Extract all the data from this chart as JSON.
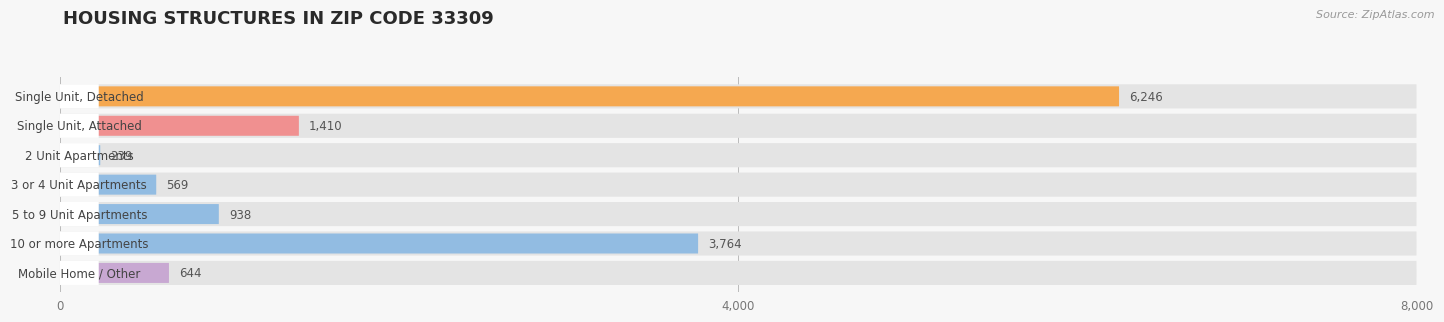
{
  "title": "HOUSING STRUCTURES IN ZIP CODE 33309",
  "source": "Source: ZipAtlas.com",
  "categories": [
    "Single Unit, Detached",
    "Single Unit, Attached",
    "2 Unit Apartments",
    "3 or 4 Unit Apartments",
    "5 to 9 Unit Apartments",
    "10 or more Apartments",
    "Mobile Home / Other"
  ],
  "values": [
    6246,
    1410,
    239,
    569,
    938,
    3764,
    644
  ],
  "bar_colors": [
    "#f5a850",
    "#f09090",
    "#92bce2",
    "#92bce2",
    "#92bce2",
    "#92bce2",
    "#c8a8d2"
  ],
  "background_color": "#f7f7f7",
  "bar_bg_color": "#e4e4e4",
  "xlim_max": 8000,
  "xticks": [
    0,
    4000,
    8000
  ],
  "title_fontsize": 13,
  "label_fontsize": 8.5,
  "value_fontsize": 8.5,
  "source_fontsize": 8
}
